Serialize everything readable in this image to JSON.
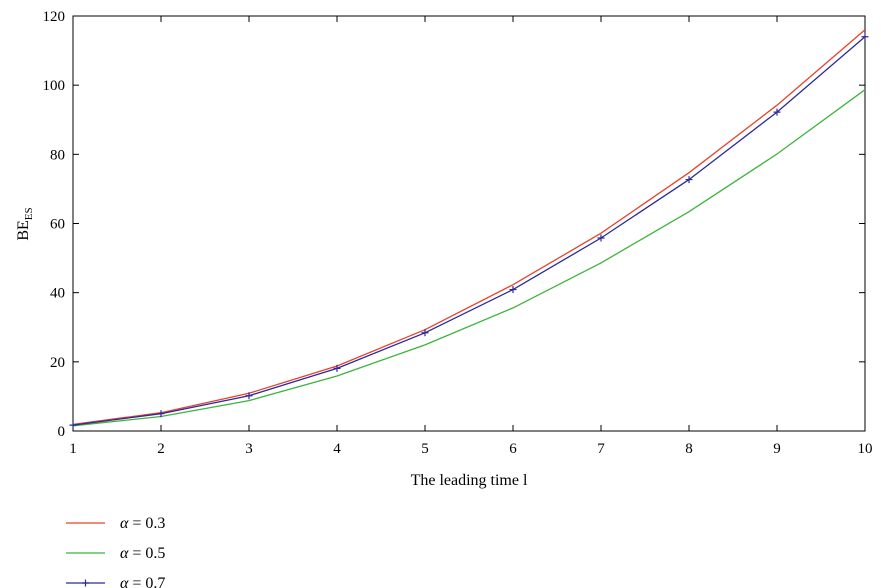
{
  "chart_data": {
    "type": "line",
    "title": "",
    "xlabel": "The leading time l",
    "ylabel": "BE",
    "ylabel_sub": "ES",
    "xlim": [
      1,
      10
    ],
    "ylim": [
      0,
      120
    ],
    "x_ticks": [
      1,
      2,
      3,
      4,
      5,
      6,
      7,
      8,
      9,
      10
    ],
    "y_ticks": [
      0,
      20,
      40,
      60,
      80,
      100,
      120
    ],
    "grid": false,
    "legend_position": "bottom-left (below plot)",
    "x": [
      1,
      2,
      3,
      4,
      5,
      6,
      7,
      8,
      9,
      10
    ],
    "series": [
      {
        "name": "α = 0.3",
        "greek": "α",
        "label_rest": " = 0.3",
        "color": "#e8412c",
        "marker": "none",
        "values": [
          1.9,
          5.3,
          10.9,
          18.8,
          29.3,
          42.3,
          57.2,
          74.7,
          94.2,
          116.0
        ]
      },
      {
        "name": "α = 0.5",
        "greek": "α",
        "label_rest": " = 0.5",
        "color": "#3cb43c",
        "marker": "none",
        "values": [
          1.5,
          4.2,
          8.8,
          15.9,
          24.9,
          35.6,
          48.6,
          63.4,
          80.1,
          98.7
        ]
      },
      {
        "name": "α = 0.7",
        "greek": "α",
        "label_rest": " = 0.7",
        "color": "#2a2a9a",
        "marker": "plus",
        "values": [
          1.7,
          5.0,
          10.2,
          18.1,
          28.4,
          40.9,
          55.8,
          72.7,
          92.2,
          114.0
        ]
      }
    ]
  }
}
